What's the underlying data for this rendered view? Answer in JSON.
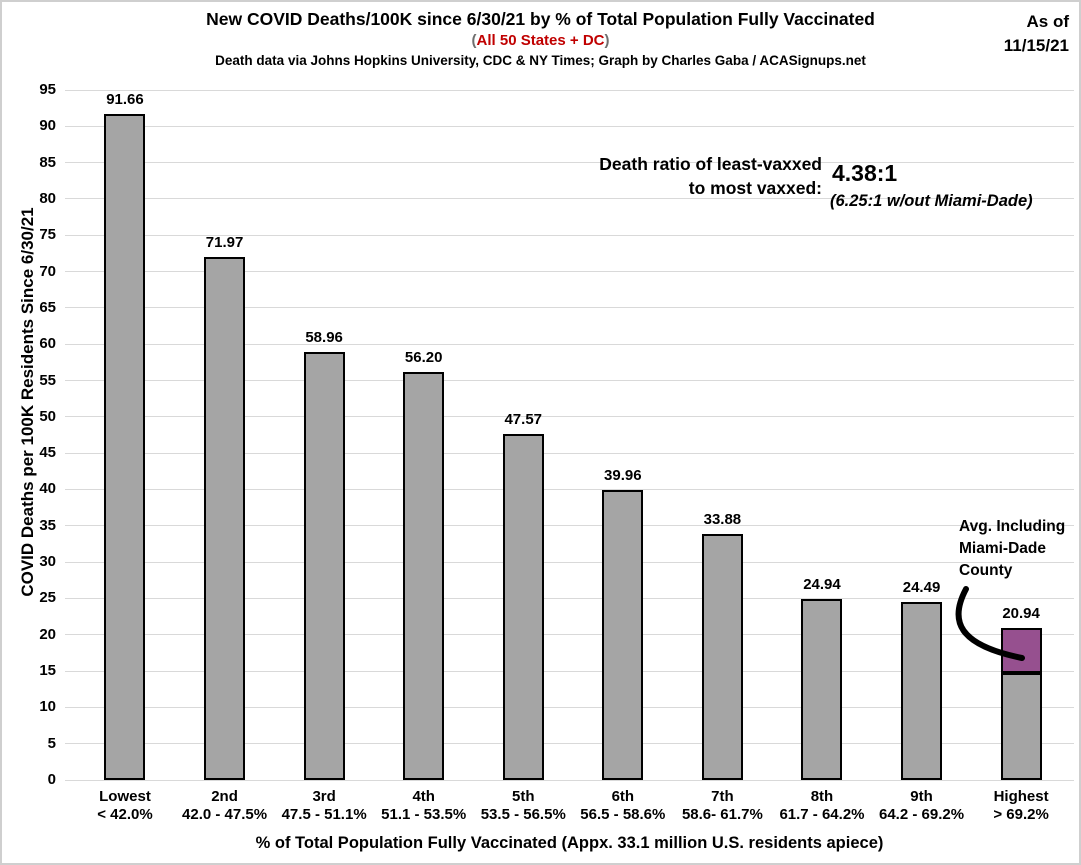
{
  "header": {
    "title": "New COVID Deaths/100K since 6/30/21 by % of Total Population Fully Vaccinated",
    "subtitle_paren_open": "(",
    "subtitle": "All 50 States + DC",
    "subtitle_paren_close": ")",
    "source": "Death data via Johns Hopkins University, CDC & NY Times; Graph by Charles Gaba / ACASignups.net",
    "as_of_line1": "As of",
    "as_of_line2": "11/15/21"
  },
  "annotations": {
    "ratio_label_line1": "Death ratio of least-vaxxed",
    "ratio_label_line2": "to most vaxxed:",
    "ratio_value": "4.38:1",
    "ratio_note": "(6.25:1 w/out Miami-Dade)",
    "miami_label_line1": "Avg. Including",
    "miami_label_line2": "Miami-Dade",
    "miami_label_line3": "County"
  },
  "chart_data": {
    "type": "bar",
    "title": "New COVID Deaths/100K since 6/30/21 by % of Total Population Fully Vaccinated",
    "xlabel": "% of Total Population Fully Vaccinated (Appx. 33.1 million U.S. residents apiece)",
    "ylabel": "COVID Deaths per 100K Residents Since 6/30/21",
    "ylim": [
      0,
      95
    ],
    "ytick_step": 5,
    "grid": true,
    "categories": [
      {
        "rank": "Lowest",
        "range": "< 42.0%"
      },
      {
        "rank": "2nd",
        "range": "42.0 - 47.5%"
      },
      {
        "rank": "3rd",
        "range": "47.5 - 51.1%"
      },
      {
        "rank": "4th",
        "range": "51.1 - 53.5%"
      },
      {
        "rank": "5th",
        "range": "53.5 - 56.5%"
      },
      {
        "rank": "6th",
        "range": "56.5 - 58.6%"
      },
      {
        "rank": "7th",
        "range": "58.6- 61.7%"
      },
      {
        "rank": "8th",
        "range": "61.7 - 64.2%"
      },
      {
        "rank": "9th",
        "range": "64.2 - 69.2%"
      },
      {
        "rank": "Highest",
        "range": "> 69.2%"
      }
    ],
    "values": [
      91.66,
      71.97,
      58.96,
      56.2,
      47.57,
      39.96,
      33.88,
      24.94,
      24.49,
      20.94
    ],
    "value_labels": [
      "91.66",
      "71.97",
      "58.96",
      "56.20",
      "47.57",
      "39.96",
      "33.88",
      "24.94",
      "24.49",
      "20.94"
    ],
    "highlight": {
      "index": 9,
      "base_value_est": 14.67,
      "top_value": 20.94,
      "top_color": "#96508F",
      "label": "Avg. Including Miami-Dade County"
    }
  },
  "colors": {
    "bar_gray": "#A5A5A5",
    "bar_border": "#000000",
    "highlight_purple": "#96508F",
    "grid": "#D9D9D9",
    "accent_red": "#C00000",
    "paren_gray": "#6F6F6F",
    "text": "#000000"
  }
}
